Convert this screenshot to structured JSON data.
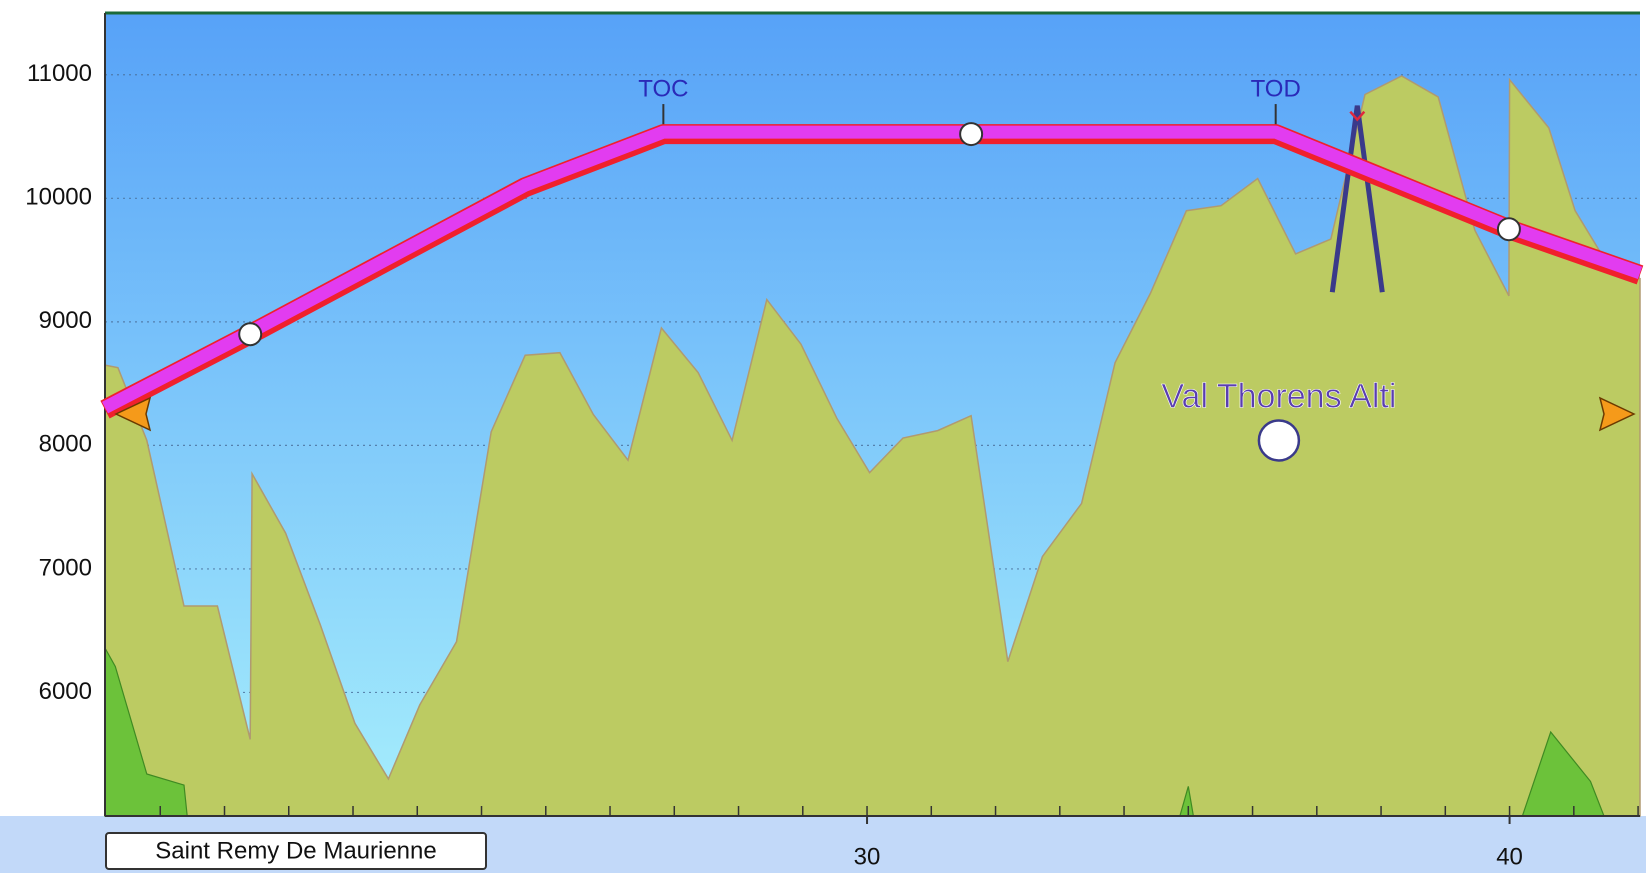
{
  "chart_data": {
    "type": "profile",
    "xlim": [
      18.14,
      42.03
    ],
    "ylim": [
      5000,
      11500
    ],
    "xticks": [
      30,
      40
    ],
    "xminorticks": [
      19,
      20,
      21,
      22,
      23,
      24,
      25,
      26,
      27,
      28,
      29,
      30,
      31,
      32,
      33,
      34,
      35,
      36,
      37,
      38,
      39,
      40,
      41,
      42
    ],
    "yticks": [
      6000,
      7000,
      8000,
      9000,
      10000,
      11000
    ],
    "grid": true,
    "departure_label": "Saint Remy De Maurienne",
    "terrain": {
      "color": "#bccb62",
      "x": [
        18.14,
        18.34,
        18.79,
        19.37,
        19.89,
        20.4,
        20.43,
        20.95,
        21.49,
        22.03,
        22.55,
        23.04,
        23.61,
        24.15,
        24.68,
        25.22,
        25.74,
        26.28,
        26.8,
        27.37,
        27.9,
        28.44,
        28.97,
        29.53,
        30.04,
        30.56,
        31.1,
        31.62,
        32.19,
        32.73,
        33.34,
        33.86,
        34.41,
        34.97,
        35.51,
        36.08,
        36.67,
        37.22,
        37.75,
        38.32,
        38.89,
        39.46,
        39.99,
        40.0,
        40.61,
        41.02,
        41.51,
        42.03
      ],
      "values": [
        8650,
        8630,
        8040,
        6700,
        6700,
        5620,
        7770,
        7290,
        6550,
        5750,
        5300,
        5900,
        6410,
        8110,
        8730,
        8750,
        8250,
        7880,
        8950,
        8590,
        8040,
        9180,
        8820,
        8220,
        7780,
        8060,
        8120,
        8240,
        6250,
        7100,
        7530,
        8670,
        9230,
        9900,
        9940,
        10160,
        9550,
        9670,
        10840,
        10990,
        10820,
        9740,
        9210,
        10960,
        10570,
        9900,
        9480,
        9350
      ]
    },
    "high_terrain": [
      {
        "color": "#6cc23a",
        "x": [
          18.14,
          18.3,
          18.79,
          19.37,
          19.42
        ],
        "values": [
          6360,
          6210,
          5340,
          5250,
          5000
        ]
      },
      {
        "color": "#6cc23a",
        "x": [
          34.87,
          35.0,
          35.08
        ],
        "values": [
          5000,
          5240,
          5000
        ]
      },
      {
        "color": "#6cc23a",
        "x": [
          40.2,
          40.64,
          41.26,
          41.47
        ],
        "values": [
          5000,
          5680,
          5280,
          5000
        ]
      }
    ],
    "route": {
      "color": "#e23cf0",
      "x": [
        18.14,
        20.4,
        24.68,
        26.83,
        31.62,
        36.36,
        39.99,
        42.03
      ],
      "values": [
        8290,
        8900,
        10090,
        10520,
        10520,
        10520,
        9750,
        9380
      ],
      "waypoints": [
        1,
        4,
        6
      ]
    },
    "markers": [
      {
        "label": "TOC",
        "x": 26.83
      },
      {
        "label": "TOD",
        "x": 36.36
      }
    ],
    "airport": {
      "label": "Val Thorens Alti",
      "x": 36.41,
      "value": 8040
    },
    "obstacle": {
      "x": 37.63,
      "top": 10750,
      "base": 9240
    }
  }
}
